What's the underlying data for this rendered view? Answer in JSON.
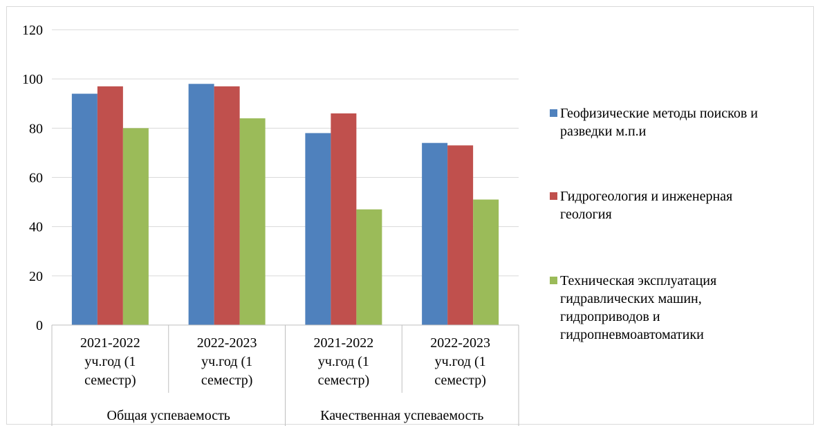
{
  "chart_data": {
    "type": "bar",
    "title": "",
    "xlabel": "",
    "ylabel": "",
    "ylim": [
      0,
      120
    ],
    "yticks": [
      0,
      20,
      40,
      60,
      80,
      100,
      120
    ],
    "grid": true,
    "legend_position": "right",
    "groups": [
      {
        "label": "Общая успеваемость",
        "categories": [
          "2021-2022 уч.год (1 семестр)",
          "2022-2023 уч.год (1 семестр)"
        ]
      },
      {
        "label": "Качественная успеваемость",
        "categories": [
          "2021-2022 уч.год (1 семестр)",
          "2022-2023 уч.год (1 семестр)"
        ]
      }
    ],
    "categories": [
      [
        "2021-2022",
        "уч.год (1",
        "семестр)"
      ],
      [
        "2022-2023",
        "уч.год (1",
        "семестр)"
      ],
      [
        "2021-2022",
        "уч.год (1",
        "семестр)"
      ],
      [
        "2022-2023",
        "уч.год (1",
        "семестр)"
      ]
    ],
    "series": [
      {
        "name": [
          "Геофизические методы поисков  и",
          "разведки м.п.и"
        ],
        "color": "#4f81bd",
        "values": [
          94,
          98,
          78,
          74
        ]
      },
      {
        "name": [
          "Гидрогеология и инженерная",
          "геология"
        ],
        "color": "#c0504d",
        "values": [
          97,
          97,
          86,
          73
        ]
      },
      {
        "name": [
          "Техническая эксплуатация",
          "гидравлических машин,",
          "гидроприводов и",
          "гидропневмоавтоматики"
        ],
        "color": "#9bbb59",
        "values": [
          80,
          84,
          47,
          51
        ]
      }
    ]
  }
}
